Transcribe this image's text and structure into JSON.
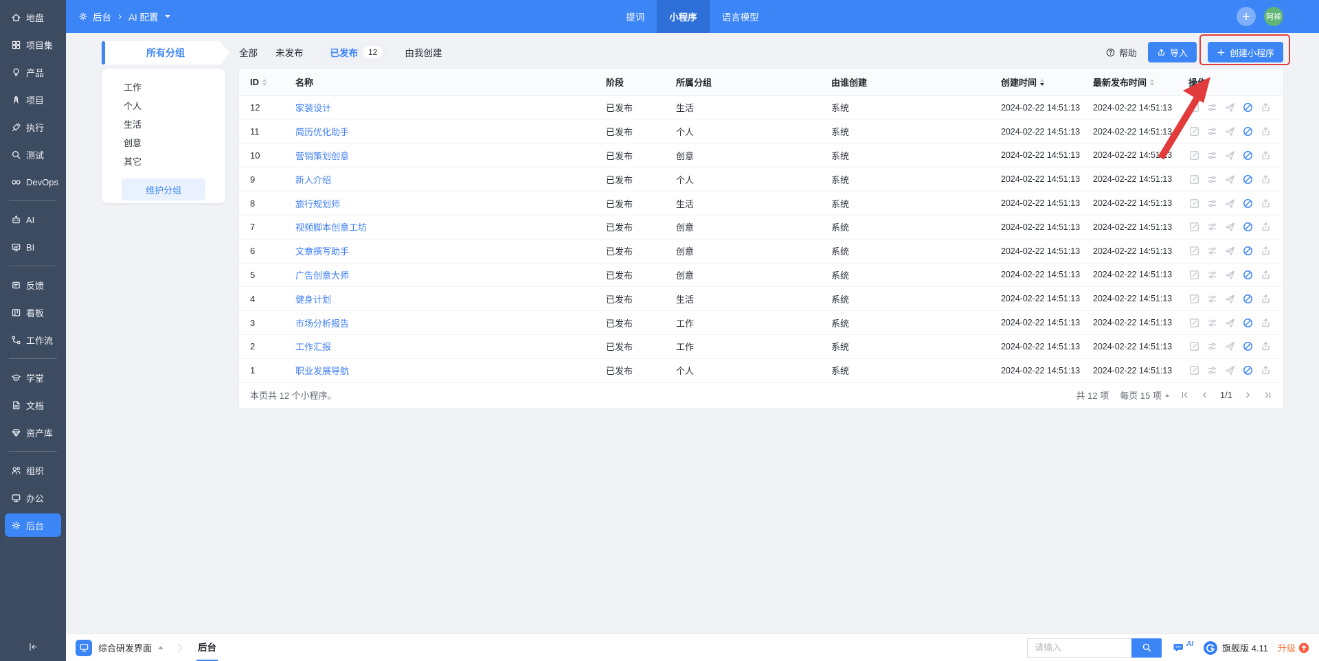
{
  "topbar": {
    "breadcrumb": {
      "root": "后台",
      "current": "AI 配置"
    },
    "tabs": [
      {
        "key": "prompts",
        "label": "提词",
        "active": false
      },
      {
        "key": "miniapp",
        "label": "小程序",
        "active": true
      },
      {
        "key": "model",
        "label": "语言模型",
        "active": false
      }
    ],
    "avatar_text": "阿禅"
  },
  "sidebar": {
    "sections": [
      {
        "items": [
          {
            "key": "home",
            "label": "地盘"
          },
          {
            "key": "grid",
            "label": "项目集"
          },
          {
            "key": "bulb",
            "label": "产品"
          },
          {
            "key": "rocket",
            "label": "项目"
          },
          {
            "key": "dart",
            "label": "执行"
          },
          {
            "key": "magnifier",
            "label": "测试"
          },
          {
            "key": "infinity",
            "label": "DevOps"
          }
        ]
      },
      {
        "items": [
          {
            "key": "robot",
            "label": "AI"
          },
          {
            "key": "chart",
            "label": "BI"
          }
        ]
      },
      {
        "items": [
          {
            "key": "feedback",
            "label": "反馈"
          },
          {
            "key": "kanban",
            "label": "看板"
          },
          {
            "key": "workflow",
            "label": "工作流"
          }
        ]
      },
      {
        "items": [
          {
            "key": "school",
            "label": "学堂"
          },
          {
            "key": "doc",
            "label": "文档"
          },
          {
            "key": "gem",
            "label": "资产库"
          }
        ]
      },
      {
        "items": [
          {
            "key": "people",
            "label": "组织"
          },
          {
            "key": "monitor",
            "label": "办公"
          },
          {
            "key": "gear",
            "label": "后台",
            "active": true
          }
        ]
      }
    ]
  },
  "groups_panel": {
    "title": "所有分组",
    "items": [
      "工作",
      "个人",
      "生活",
      "创意",
      "其它"
    ],
    "maintain_button": "维护分组"
  },
  "filters": {
    "tabs": [
      {
        "key": "all",
        "label": "全部"
      },
      {
        "key": "unpublished",
        "label": "未发布"
      },
      {
        "key": "published",
        "label": "已发布",
        "count": "12",
        "active": true
      },
      {
        "key": "mine",
        "label": "由我创建"
      }
    ],
    "help": "帮助",
    "import_button": "导入",
    "create_button": "创建小程序"
  },
  "annotation": {
    "type": "highlight-box-with-arrow",
    "color": "#e23b3b",
    "target": "创建小程序"
  },
  "table": {
    "columns": [
      {
        "key": "id",
        "label": "ID",
        "sortable": true
      },
      {
        "key": "name",
        "label": "名称"
      },
      {
        "key": "stage",
        "label": "阶段"
      },
      {
        "key": "group",
        "label": "所属分组"
      },
      {
        "key": "creator",
        "label": "由谁创建"
      },
      {
        "key": "created",
        "label": "创建时间",
        "sortable": true,
        "sorted": "desc"
      },
      {
        "key": "published",
        "label": "最新发布时间",
        "sortable": true
      },
      {
        "key": "actions",
        "label": "操作"
      }
    ],
    "actions": [
      {
        "key": "edit"
      },
      {
        "key": "config"
      },
      {
        "key": "send"
      },
      {
        "key": "disable"
      },
      {
        "key": "export"
      }
    ],
    "rows": [
      {
        "id": "12",
        "name": "家装设计",
        "stage": "已发布",
        "group": "生活",
        "creator": "系统",
        "created": "2024-02-22 14:51:13",
        "published": "2024-02-22 14:51:13"
      },
      {
        "id": "11",
        "name": "简历优化助手",
        "stage": "已发布",
        "group": "个人",
        "creator": "系统",
        "created": "2024-02-22 14:51:13",
        "published": "2024-02-22 14:51:13"
      },
      {
        "id": "10",
        "name": "营销策划创意",
        "stage": "已发布",
        "group": "创意",
        "creator": "系统",
        "created": "2024-02-22 14:51:13",
        "published": "2024-02-22 14:51:13"
      },
      {
        "id": "9",
        "name": "新人介绍",
        "stage": "已发布",
        "group": "个人",
        "creator": "系统",
        "created": "2024-02-22 14:51:13",
        "published": "2024-02-22 14:51:13"
      },
      {
        "id": "8",
        "name": "旅行规划师",
        "stage": "已发布",
        "group": "生活",
        "creator": "系统",
        "created": "2024-02-22 14:51:13",
        "published": "2024-02-22 14:51:13"
      },
      {
        "id": "7",
        "name": "视频脚本创意工坊",
        "stage": "已发布",
        "group": "创意",
        "creator": "系统",
        "created": "2024-02-22 14:51:13",
        "published": "2024-02-22 14:51:13"
      },
      {
        "id": "6",
        "name": "文章撰写助手",
        "stage": "已发布",
        "group": "创意",
        "creator": "系统",
        "created": "2024-02-22 14:51:13",
        "published": "2024-02-22 14:51:13"
      },
      {
        "id": "5",
        "name": "广告创意大师",
        "stage": "已发布",
        "group": "创意",
        "creator": "系统",
        "created": "2024-02-22 14:51:13",
        "published": "2024-02-22 14:51:13"
      },
      {
        "id": "4",
        "name": "健身计划",
        "stage": "已发布",
        "group": "生活",
        "creator": "系统",
        "created": "2024-02-22 14:51:13",
        "published": "2024-02-22 14:51:13"
      },
      {
        "id": "3",
        "name": "市场分析报告",
        "stage": "已发布",
        "group": "工作",
        "creator": "系统",
        "created": "2024-02-22 14:51:13",
        "published": "2024-02-22 14:51:13"
      },
      {
        "id": "2",
        "name": "工作汇报",
        "stage": "已发布",
        "group": "工作",
        "creator": "系统",
        "created": "2024-02-22 14:51:13",
        "published": "2024-02-22 14:51:13"
      },
      {
        "id": "1",
        "name": "职业发展导航",
        "stage": "已发布",
        "group": "个人",
        "creator": "系统",
        "created": "2024-02-22 14:51:13",
        "published": "2024-02-22 14:51:13"
      }
    ],
    "footer_summary": "本页共 12 个小程序。",
    "pagination": {
      "total": "共 12 项",
      "page_size": "每页 15 项",
      "page": "1/1"
    }
  },
  "bottombar": {
    "workspace": "综合研发界面",
    "active_tab": "后台",
    "search_placeholder": "请输入",
    "ai_label": "AI",
    "edition": "旗舰版 4.11",
    "upgrade": "升级"
  }
}
